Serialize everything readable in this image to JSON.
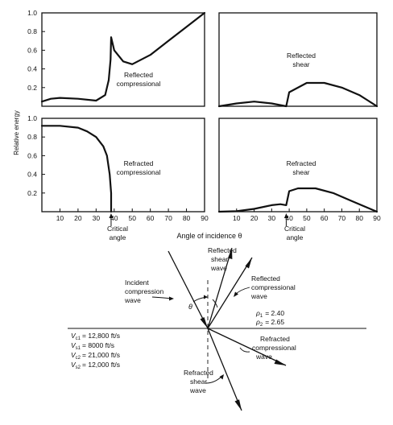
{
  "figure": {
    "y_axis_label": "Relative energy",
    "x_axis_label": "Angle of incidence θ",
    "critical_angle_label": [
      "Critical",
      "angle"
    ]
  },
  "chart_data": [
    {
      "type": "line",
      "panel": "top-left",
      "annotation": [
        "Reflected",
        "compressional"
      ],
      "x": [
        0,
        5,
        10,
        20,
        30,
        35,
        37,
        38,
        38.3,
        40,
        45,
        50,
        60,
        70,
        80,
        90
      ],
      "y": [
        0.05,
        0.08,
        0.09,
        0.08,
        0.06,
        0.12,
        0.28,
        0.5,
        0.74,
        0.6,
        0.48,
        0.45,
        0.55,
        0.7,
        0.85,
        1.0
      ],
      "xlim": [
        0,
        90
      ],
      "ylim": [
        0,
        1.0
      ],
      "yticks": [
        0.2,
        0.4,
        0.6,
        0.8,
        1.0
      ]
    },
    {
      "type": "line",
      "panel": "top-right",
      "annotation": [
        "Reflected",
        "shear"
      ],
      "x": [
        0,
        10,
        20,
        30,
        38.3,
        38.3,
        40,
        50,
        60,
        70,
        80,
        85,
        90
      ],
      "y": [
        0.0,
        0.03,
        0.05,
        0.03,
        0.0,
        0.0,
        0.15,
        0.25,
        0.25,
        0.2,
        0.12,
        0.06,
        0.0
      ],
      "xlim": [
        0,
        90
      ],
      "ylim": [
        0,
        1.0
      ]
    },
    {
      "type": "line",
      "panel": "bottom-left",
      "annotation": [
        "Refracted",
        "compressional"
      ],
      "x": [
        0,
        10,
        20,
        25,
        30,
        34,
        36,
        37.5,
        38.3,
        38.3
      ],
      "y": [
        0.92,
        0.92,
        0.9,
        0.86,
        0.8,
        0.7,
        0.6,
        0.4,
        0.2,
        0.0
      ],
      "xlim": [
        0,
        90
      ],
      "ylim": [
        0,
        1.0
      ],
      "xticks": [
        10,
        20,
        30,
        40,
        50,
        60,
        70,
        80,
        90
      ],
      "yticks": [
        0.2,
        0.4,
        0.6,
        0.8,
        1.0
      ]
    },
    {
      "type": "line",
      "panel": "bottom-right",
      "annotation": [
        "Refracted",
        "shear"
      ],
      "x": [
        0,
        10,
        20,
        30,
        35,
        38.3,
        40,
        45,
        55,
        65,
        75,
        85,
        90
      ],
      "y": [
        0.0,
        0.005,
        0.03,
        0.07,
        0.08,
        0.07,
        0.22,
        0.25,
        0.25,
        0.2,
        0.12,
        0.04,
        0.0
      ],
      "xlim": [
        0,
        90
      ],
      "ylim": [
        0,
        1.0
      ],
      "xticks": [
        10,
        20,
        30,
        40,
        50,
        60,
        70,
        80,
        90
      ]
    }
  ],
  "diagram": {
    "incident_label": [
      "Incident",
      "compression",
      "wave"
    ],
    "reflected_shear_label": [
      "Reflected",
      "shear",
      "wave"
    ],
    "reflected_comp_label": [
      "Reflected",
      "compressional",
      "wave"
    ],
    "refracted_comp_label": [
      "Refracted",
      "compressional",
      "wave"
    ],
    "refracted_shear_label": [
      "Refracted",
      "shear",
      "wave"
    ],
    "theta_symbol": "θ",
    "densities": [
      {
        "sym": "ρ",
        "sub": "1",
        "value": "= 2.40"
      },
      {
        "sym": "ρ",
        "sub": "2",
        "value": "= 2.65"
      }
    ],
    "velocities": [
      {
        "sym": "V",
        "sub": "c1",
        "value": "= 12,800 ft/s"
      },
      {
        "sym": "V",
        "sub": "s1",
        "value": "= 8000 ft/s"
      },
      {
        "sym": "V",
        "sub": "c2",
        "value": "= 21,000 ft/s"
      },
      {
        "sym": "V",
        "sub": "s2",
        "value": "= 12,000 ft/s"
      }
    ]
  }
}
